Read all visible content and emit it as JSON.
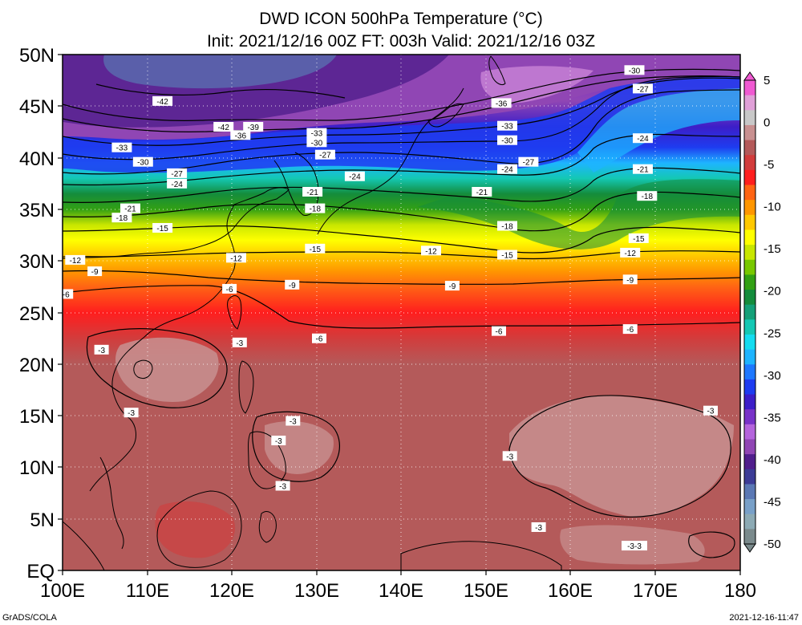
{
  "title": {
    "line1": "DWD ICON 500hPa Temperature (°C)",
    "line2": "Init: 2021/12/16 00Z  FT: 003h  Valid: 2021/12/16 03Z"
  },
  "footer": {
    "left": "GrADS/COLA",
    "right": "2021-12-16-11:47"
  },
  "map": {
    "lon_range": [
      100,
      180
    ],
    "lat_range": [
      0,
      50
    ],
    "grid": "dotted white lines every 10° longitude and 5° latitude",
    "y_ticks": [
      "50N",
      "45N",
      "40N",
      "35N",
      "30N",
      "25N",
      "20N",
      "15N",
      "10N",
      "5N",
      "EQ"
    ],
    "x_ticks": [
      "100E",
      "110E",
      "120E",
      "130E",
      "140E",
      "150E",
      "160E",
      "170E",
      "180"
    ]
  },
  "colorbar": {
    "ticks": [
      "5",
      "0",
      "-5",
      "-10",
      "-15",
      "-20",
      "-25",
      "-30",
      "-35",
      "-40",
      "-45",
      "-50"
    ],
    "values": [
      5,
      0,
      -5,
      -10,
      -15,
      -20,
      -25,
      -30,
      -35,
      -40,
      -45,
      -50
    ],
    "colors_top_to_bottom": [
      "#f05ad2",
      "#e0a0d8",
      "#c8c8c8",
      "#c89090",
      "#b45a5a",
      "#d23c3c",
      "#ff1e1e",
      "#ff6414",
      "#ff9600",
      "#ffc800",
      "#ffff00",
      "#c8e600",
      "#78c800",
      "#32a014",
      "#148c3c",
      "#14a078",
      "#14c8b4",
      "#14dcf0",
      "#1eb4ff",
      "#1e78ff",
      "#1e3cf0",
      "#3c1ec8",
      "#7832c8",
      "#b464dc",
      "#9046b4",
      "#501e8c",
      "#3c3c96",
      "#5a78b4",
      "#78a0c8",
      "#8caab4",
      "#7a8a8c"
    ]
  },
  "contours": {
    "levels": [
      -42,
      -39,
      -36,
      -33,
      -30,
      -27,
      -24,
      -21,
      -18,
      -15,
      -12,
      -9,
      -6,
      -3
    ],
    "labels": [
      {
        "text": "-42",
        "lon": 111.8,
        "lat": 45.5
      },
      {
        "text": "-42",
        "lon": 119.0,
        "lat": 43.0
      },
      {
        "text": "-39",
        "lon": 122.5,
        "lat": 43.0
      },
      {
        "text": "-36",
        "lon": 121.0,
        "lat": 42.2
      },
      {
        "text": "-33",
        "lon": 107.0,
        "lat": 41.0
      },
      {
        "text": "-33",
        "lon": 130.0,
        "lat": 42.4
      },
      {
        "text": "-30",
        "lon": 130.0,
        "lat": 41.5
      },
      {
        "text": "-27",
        "lon": 131.0,
        "lat": 40.3
      },
      {
        "text": "-30",
        "lon": 109.5,
        "lat": 39.6
      },
      {
        "text": "-27",
        "lon": 113.5,
        "lat": 38.5
      },
      {
        "text": "-24",
        "lon": 113.5,
        "lat": 37.5
      },
      {
        "text": "-24",
        "lon": 134.5,
        "lat": 38.2
      },
      {
        "text": "-21",
        "lon": 129.5,
        "lat": 36.7
      },
      {
        "text": "-21",
        "lon": 108.0,
        "lat": 35.1
      },
      {
        "text": "-18",
        "lon": 107.0,
        "lat": 34.2
      },
      {
        "text": "-18",
        "lon": 129.8,
        "lat": 35.1
      },
      {
        "text": "-15",
        "lon": 111.8,
        "lat": 33.2
      },
      {
        "text": "-15",
        "lon": 129.8,
        "lat": 31.2
      },
      {
        "text": "-12",
        "lon": 101.5,
        "lat": 30.1
      },
      {
        "text": "-12",
        "lon": 120.5,
        "lat": 30.3
      },
      {
        "text": "-9",
        "lon": 103.8,
        "lat": 29.0
      },
      {
        "text": "-6",
        "lon": 100.4,
        "lat": 26.8
      },
      {
        "text": "-6",
        "lon": 119.7,
        "lat": 27.3
      },
      {
        "text": "-9",
        "lon": 127.1,
        "lat": 27.7
      },
      {
        "text": "-36",
        "lon": 151.8,
        "lat": 45.3
      },
      {
        "text": "-33",
        "lon": 152.5,
        "lat": 43.1
      },
      {
        "text": "-30",
        "lon": 152.5,
        "lat": 41.7
      },
      {
        "text": "-27",
        "lon": 155.0,
        "lat": 39.6
      },
      {
        "text": "-24",
        "lon": 152.5,
        "lat": 38.9
      },
      {
        "text": "-21",
        "lon": 149.5,
        "lat": 36.7
      },
      {
        "text": "-18",
        "lon": 152.5,
        "lat": 33.4
      },
      {
        "text": "-12",
        "lon": 143.5,
        "lat": 31.0
      },
      {
        "text": "-15",
        "lon": 152.5,
        "lat": 30.6
      },
      {
        "text": "-9",
        "lon": 146.0,
        "lat": 27.6
      },
      {
        "text": "-6",
        "lon": 151.5,
        "lat": 23.2
      },
      {
        "text": "-30",
        "lon": 167.5,
        "lat": 48.5
      },
      {
        "text": "-27",
        "lon": 168.5,
        "lat": 46.7
      },
      {
        "text": "-24",
        "lon": 168.5,
        "lat": 41.9
      },
      {
        "text": "-21",
        "lon": 168.5,
        "lat": 38.9
      },
      {
        "text": "-18",
        "lon": 169.0,
        "lat": 36.3
      },
      {
        "text": "-15",
        "lon": 168.0,
        "lat": 32.2
      },
      {
        "text": "-12",
        "lon": 167.0,
        "lat": 30.8
      },
      {
        "text": "-9",
        "lon": 167.0,
        "lat": 28.2
      },
      {
        "text": "-6",
        "lon": 167.0,
        "lat": 23.4
      },
      {
        "text": "-3",
        "lon": 104.6,
        "lat": 21.4
      },
      {
        "text": "-3",
        "lon": 120.9,
        "lat": 22.1
      },
      {
        "text": "-6",
        "lon": 130.3,
        "lat": 22.5
      },
      {
        "text": "-3",
        "lon": 108.1,
        "lat": 15.3
      },
      {
        "text": "-3",
        "lon": 127.2,
        "lat": 14.5
      },
      {
        "text": "-3",
        "lon": 125.5,
        "lat": 12.6
      },
      {
        "text": "-3",
        "lon": 126.0,
        "lat": 8.2
      },
      {
        "text": "-3",
        "lon": 152.8,
        "lat": 11.1
      },
      {
        "text": "-3",
        "lon": 176.5,
        "lat": 15.5
      },
      {
        "text": "-3",
        "lon": 156.2,
        "lat": 4.2
      },
      {
        "text": "-3-3",
        "lon": 167.5,
        "lat": 2.4
      }
    ]
  }
}
